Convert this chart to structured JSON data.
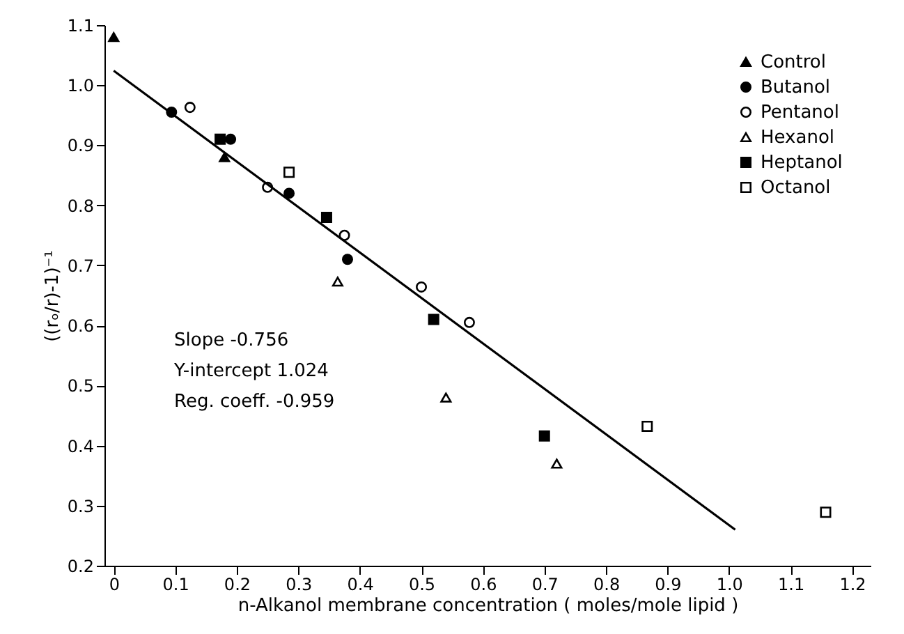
{
  "chart_data": {
    "type": "scatter",
    "xlabel": "n-Alkanol membrane concentration ( moles/mole lipid )",
    "ylabel": "((rₒ/r)-1)⁻¹",
    "xlim": [
      -0.015,
      1.23
    ],
    "ylim": [
      0.2,
      1.1
    ],
    "xticks": [
      {
        "value": 0,
        "label": "0"
      },
      0.1,
      0.2,
      0.3,
      0.4,
      0.5,
      0.6,
      0.7,
      0.8,
      0.9,
      {
        "value": 1,
        "label": "1.0"
      },
      1.1,
      1.2
    ],
    "yticks": [
      0.2,
      0.3,
      0.4,
      0.5,
      0.6,
      0.7,
      0.8,
      0.9,
      {
        "value": 1,
        "label": "1.0"
      },
      1.1
    ],
    "grid": false,
    "legend": "top right",
    "series": [
      {
        "name": "Control",
        "color": "#000000",
        "marker": "triangle",
        "x": [
          0,
          0.18
        ],
        "values": [
          1.08,
          0.88
        ]
      },
      {
        "name": "Butanol",
        "color": "#000000",
        "marker": "circle",
        "x": [
          0.094,
          0.19,
          0.285,
          0.38
        ],
        "values": [
          0.955,
          0.91,
          0.82,
          0.71
        ]
      },
      {
        "name": "Pentanol",
        "color": "#ffffff",
        "marker": "circle",
        "x": [
          0.124,
          0.25,
          0.375,
          0.5,
          0.578
        ],
        "values": [
          0.963,
          0.83,
          0.75,
          0.664,
          0.605
        ]
      },
      {
        "name": "Hexanol",
        "color": "#ffffff",
        "marker": "triangle",
        "x": [
          0.364,
          0.54,
          0.72
        ],
        "values": [
          0.673,
          0.48,
          0.37
        ]
      },
      {
        "name": "Heptanol",
        "color": "#000000",
        "marker": "square",
        "x": [
          0.173,
          0.346,
          0.52,
          0.7
        ],
        "values": [
          0.91,
          0.78,
          0.61,
          0.416
        ]
      },
      {
        "name": "Octanol",
        "color": "#ffffff",
        "marker": "square",
        "x": [
          0.285,
          0.867,
          1.157
        ],
        "values": [
          0.855,
          0.432,
          0.289
        ]
      },
      {
        "type": "line",
        "color": "#000000",
        "marker": "none",
        "x": [
          0,
          1.01
        ],
        "values": [
          1.024,
          0.26
        ]
      }
    ],
    "annotations": [
      "Slope            -0.756",
      "Y-intercept  1.024",
      "Reg. coeff.    -0.959"
    ]
  }
}
